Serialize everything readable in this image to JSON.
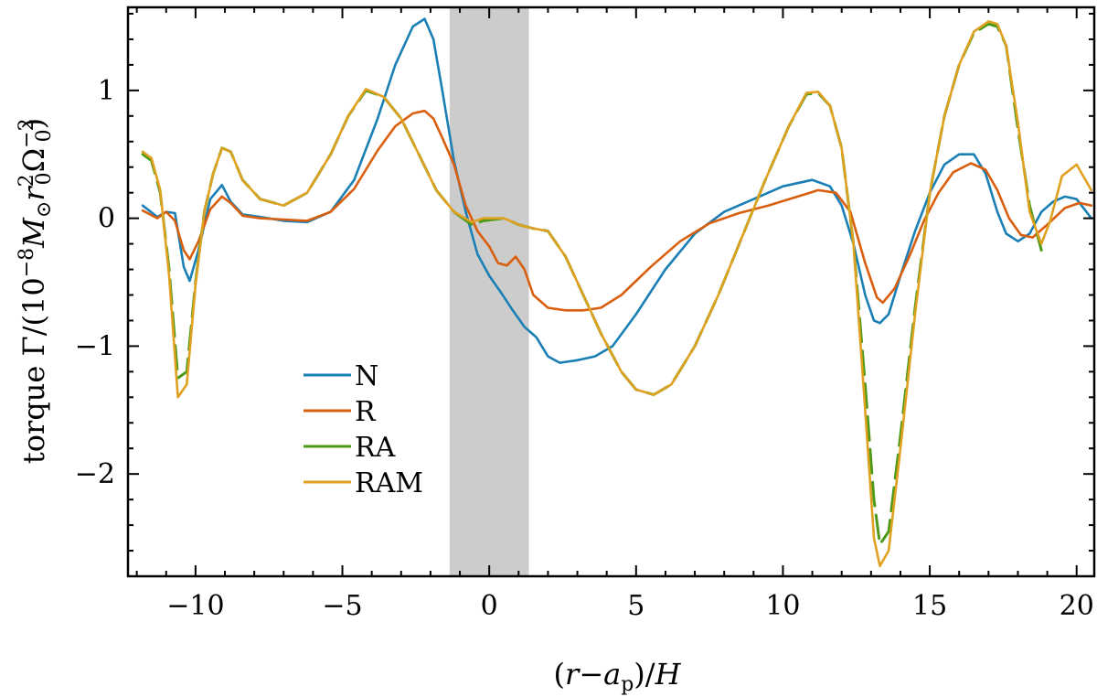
{
  "chart_data": {
    "type": "line",
    "xlabel": "(r−a_p)/H",
    "ylabel": "torque Γ/(10^−8 M_⊙ r_0^2 Ω_0^−2)",
    "xlim": [
      -12.3,
      20.6
    ],
    "ylim": [
      -2.8,
      1.65
    ],
    "xticks": [
      -10,
      -5,
      0,
      5,
      10,
      15,
      20
    ],
    "yticks": [
      -2,
      -1,
      0,
      1
    ],
    "xtick_labels": [
      "−10",
      "−5",
      "0",
      "5",
      "10",
      "15",
      "20"
    ],
    "ytick_labels": [
      "−2",
      "−1",
      "0",
      "1"
    ],
    "shaded_region": {
      "x": [
        -1.35,
        1.35
      ],
      "color": "#cccccc"
    },
    "legend": {
      "position": "lower-left"
    },
    "series": [
      {
        "name": "N",
        "color": "#1a7fb5",
        "dash": false,
        "x": [
          -11.8,
          -11.3,
          -11.0,
          -10.7,
          -10.4,
          -10.2,
          -9.9,
          -9.5,
          -9.1,
          -8.8,
          -8.4,
          -7.8,
          -7.0,
          -6.2,
          -5.4,
          -4.6,
          -3.8,
          -3.2,
          -2.6,
          -2.2,
          -1.9,
          -1.6,
          -1.2,
          -0.8,
          -0.4,
          0.0,
          0.4,
          0.8,
          1.2,
          1.6,
          2.0,
          2.4,
          3.0,
          3.6,
          4.2,
          5.0,
          6.0,
          7.0,
          8.0,
          9.0,
          10.0,
          11.0,
          11.6,
          12.0,
          12.4,
          12.8,
          13.1,
          13.3,
          13.6,
          14.0,
          14.5,
          15.0,
          15.5,
          16.0,
          16.5,
          16.9,
          17.3,
          17.6,
          18.0,
          18.4,
          18.8,
          19.2,
          19.6,
          20.0,
          20.5
        ],
        "y": [
          0.1,
          0.01,
          0.05,
          0.04,
          -0.38,
          -0.49,
          -0.25,
          0.15,
          0.26,
          0.13,
          0.03,
          0.01,
          -0.02,
          -0.03,
          0.05,
          0.3,
          0.78,
          1.2,
          1.5,
          1.56,
          1.4,
          1.0,
          0.45,
          0.05,
          -0.28,
          -0.45,
          -0.58,
          -0.72,
          -0.85,
          -0.93,
          -1.08,
          -1.13,
          -1.11,
          -1.08,
          -1.0,
          -0.75,
          -0.4,
          -0.12,
          0.05,
          0.15,
          0.25,
          0.3,
          0.25,
          0.1,
          -0.2,
          -0.6,
          -0.8,
          -0.82,
          -0.75,
          -0.45,
          -0.1,
          0.2,
          0.42,
          0.5,
          0.5,
          0.35,
          0.05,
          -0.12,
          -0.18,
          -0.12,
          0.05,
          0.13,
          0.17,
          0.15,
          0.0
        ]
      },
      {
        "name": "R",
        "color": "#d95f0e",
        "dash": false,
        "x": [
          -11.8,
          -11.3,
          -11.0,
          -10.7,
          -10.4,
          -10.2,
          -9.9,
          -9.5,
          -9.1,
          -8.8,
          -8.4,
          -7.8,
          -7.0,
          -6.2,
          -5.4,
          -4.6,
          -3.8,
          -3.2,
          -2.6,
          -2.2,
          -1.9,
          -1.6,
          -1.2,
          -0.8,
          -0.4,
          0.0,
          0.3,
          0.6,
          0.9,
          1.2,
          1.5,
          2.0,
          2.6,
          3.2,
          3.8,
          4.5,
          5.5,
          6.5,
          7.5,
          8.5,
          9.5,
          10.5,
          11.2,
          11.8,
          12.3,
          12.8,
          13.2,
          13.4,
          13.8,
          14.3,
          14.8,
          15.3,
          15.8,
          16.4,
          16.9,
          17.3,
          17.7,
          18.1,
          18.5,
          19.0,
          19.6,
          20.1,
          20.5
        ],
        "y": [
          0.06,
          0.0,
          0.05,
          -0.02,
          -0.25,
          -0.32,
          -0.18,
          0.07,
          0.17,
          0.12,
          0.02,
          0.0,
          -0.01,
          -0.02,
          0.05,
          0.23,
          0.53,
          0.72,
          0.82,
          0.84,
          0.78,
          0.63,
          0.42,
          0.1,
          -0.1,
          -0.22,
          -0.35,
          -0.37,
          -0.3,
          -0.4,
          -0.6,
          -0.7,
          -0.72,
          -0.72,
          -0.7,
          -0.6,
          -0.38,
          -0.18,
          -0.04,
          0.04,
          0.1,
          0.17,
          0.22,
          0.2,
          0.05,
          -0.35,
          -0.62,
          -0.66,
          -0.55,
          -0.3,
          -0.02,
          0.2,
          0.36,
          0.43,
          0.38,
          0.22,
          0.0,
          -0.13,
          -0.15,
          -0.05,
          0.08,
          0.12,
          0.1
        ]
      },
      {
        "name": "RA",
        "color": "#4d9a18",
        "dash": true,
        "x": [
          -11.8,
          -11.5,
          -11.2,
          -10.9,
          -10.6,
          -10.3,
          -10.0,
          -9.7,
          -9.4,
          -9.1,
          -8.8,
          -8.4,
          -7.8,
          -7.0,
          -6.2,
          -5.4,
          -4.8,
          -4.2,
          -3.6,
          -3.0,
          -2.4,
          -1.8,
          -1.2,
          -0.6,
          -0.2,
          0.5,
          1.0,
          1.5,
          2.0,
          2.6,
          3.2,
          3.8,
          4.5,
          5.0,
          5.6,
          6.2,
          7.0,
          7.8,
          8.6,
          9.4,
          10.2,
          10.8,
          11.2,
          11.6,
          12.0,
          12.4,
          12.8,
          13.1,
          13.3,
          13.6,
          14.0,
          14.5,
          15.0,
          15.5,
          16.0,
          16.5,
          17.0,
          17.3,
          17.6,
          18.0,
          18.4,
          18.8
        ],
        "y": [
          0.5,
          0.45,
          0.2,
          -0.4,
          -1.25,
          -1.2,
          -0.5,
          0.05,
          0.35,
          0.55,
          0.52,
          0.3,
          0.15,
          0.1,
          0.2,
          0.5,
          0.8,
          1.0,
          0.95,
          0.78,
          0.5,
          0.22,
          0.05,
          -0.05,
          -0.02,
          0.0,
          -0.05,
          -0.08,
          -0.1,
          -0.3,
          -0.6,
          -0.9,
          -1.2,
          -1.34,
          -1.38,
          -1.3,
          -1.0,
          -0.6,
          -0.15,
          0.3,
          0.72,
          0.97,
          0.98,
          0.88,
          0.55,
          -0.2,
          -1.3,
          -2.2,
          -2.55,
          -2.45,
          -1.7,
          -0.7,
          0.2,
          0.8,
          1.2,
          1.45,
          1.52,
          1.5,
          1.35,
          0.7,
          0.1,
          -0.25
        ]
      },
      {
        "name": "RAM",
        "color": "#e0a020",
        "dash": false,
        "x": [
          -11.8,
          -11.5,
          -11.2,
          -10.9,
          -10.6,
          -10.3,
          -10.0,
          -9.7,
          -9.4,
          -9.1,
          -8.8,
          -8.4,
          -7.8,
          -7.0,
          -6.2,
          -5.4,
          -4.8,
          -4.2,
          -3.6,
          -3.0,
          -2.4,
          -1.8,
          -1.2,
          -0.6,
          -0.2,
          0.5,
          1.0,
          1.5,
          2.0,
          2.6,
          3.2,
          3.8,
          4.5,
          5.0,
          5.6,
          6.2,
          7.0,
          7.8,
          8.6,
          9.4,
          10.2,
          10.8,
          11.2,
          11.6,
          12.0,
          12.4,
          12.8,
          13.1,
          13.3,
          13.6,
          14.0,
          14.5,
          15.0,
          15.5,
          16.0,
          16.5,
          17.0,
          17.3,
          17.6,
          18.0,
          18.4,
          18.8,
          19.1,
          19.5,
          20.0,
          20.5
        ],
        "y": [
          0.52,
          0.47,
          0.22,
          -0.45,
          -1.4,
          -1.3,
          -0.52,
          0.05,
          0.35,
          0.55,
          0.52,
          0.3,
          0.15,
          0.1,
          0.2,
          0.5,
          0.8,
          1.01,
          0.95,
          0.78,
          0.5,
          0.22,
          0.05,
          -0.03,
          0.0,
          0.0,
          -0.05,
          -0.08,
          -0.1,
          -0.3,
          -0.6,
          -0.9,
          -1.2,
          -1.34,
          -1.38,
          -1.3,
          -1.0,
          -0.6,
          -0.15,
          0.3,
          0.72,
          0.98,
          0.99,
          0.88,
          0.55,
          -0.2,
          -1.5,
          -2.5,
          -2.72,
          -2.6,
          -1.8,
          -0.75,
          0.2,
          0.8,
          1.2,
          1.46,
          1.54,
          1.52,
          1.35,
          0.75,
          0.05,
          -0.2,
          -0.02,
          0.33,
          0.42,
          0.22
        ]
      }
    ]
  }
}
